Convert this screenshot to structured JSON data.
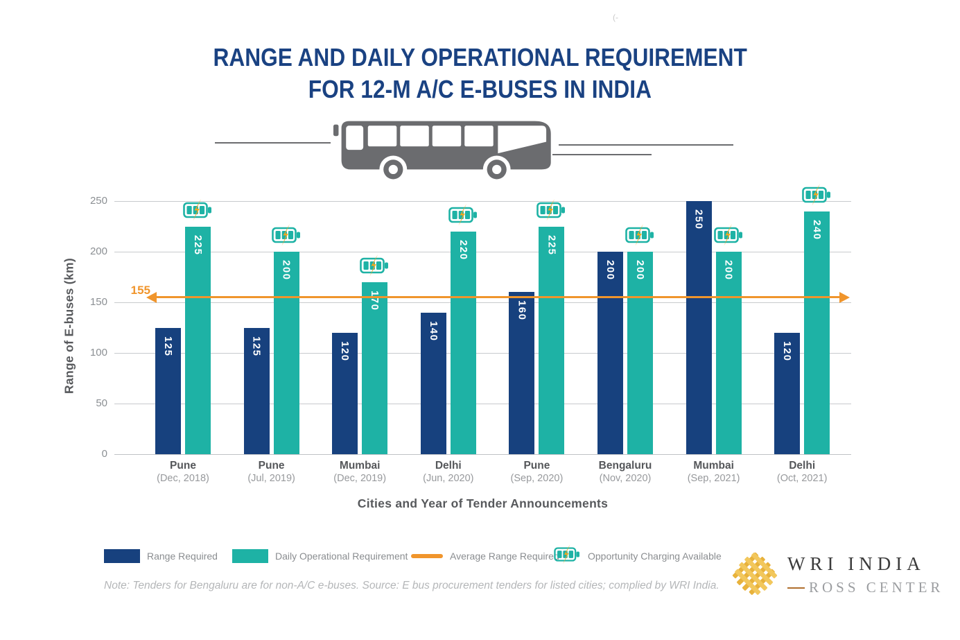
{
  "artifact": "(-",
  "title": {
    "line1": "RANGE AND DAILY OPERATIONAL REQUIREMENT",
    "line2": "FOR 12-M A/C E-BUSES IN INDIA"
  },
  "chart_data": {
    "type": "bar",
    "title": "Range and Daily Operational Requirement for 12-m A/C E-buses in India",
    "xlabel": "Cities and Year of Tender Announcements",
    "ylabel": "Range of E-buses (km)",
    "ylim": [
      0,
      250
    ],
    "yticks": [
      0,
      50,
      100,
      150,
      200,
      250
    ],
    "grid": "horizontal",
    "legend_position": "bottom",
    "categories": [
      {
        "city": "Pune",
        "date": "(Dec, 2018)"
      },
      {
        "city": "Pune",
        "date": "(Jul, 2019)"
      },
      {
        "city": "Mumbai",
        "date": "(Dec, 2019)"
      },
      {
        "city": "Delhi",
        "date": "(Jun, 2020)"
      },
      {
        "city": "Pune",
        "date": "(Sep, 2020)"
      },
      {
        "city": "Bengaluru",
        "date": "(Nov, 2020)"
      },
      {
        "city": "Mumbai",
        "date": "(Sep, 2021)"
      },
      {
        "city": "Delhi",
        "date": "(Oct, 2021)"
      }
    ],
    "series": [
      {
        "name": "Range Required",
        "color": "#17417E",
        "values": [
          125,
          125,
          120,
          140,
          160,
          200,
          250,
          120
        ]
      },
      {
        "name": "Daily Operational Requirement",
        "color": "#1EB2A5",
        "values": [
          225,
          200,
          170,
          220,
          225,
          200,
          200,
          240
        ]
      }
    ],
    "average_line": {
      "name": "Average Range Required",
      "value": 155,
      "label": "155",
      "color": "#F0952C"
    },
    "opportunity_charging_available": [
      true,
      true,
      true,
      true,
      true,
      true,
      true,
      true
    ]
  },
  "legend": {
    "items": [
      {
        "label": "Range Required",
        "swatch": "blue-rect",
        "color": "#17417E"
      },
      {
        "label": "Daily Operational Requirement",
        "swatch": "teal-rect",
        "color": "#1EB2A5"
      },
      {
        "label": "Average Range Required",
        "swatch": "orange-line",
        "color": "#F0952C"
      },
      {
        "label": "Opportunity Charging Available",
        "swatch": "battery-icon",
        "color": "#1EB2A5"
      }
    ]
  },
  "note": "Note: Tenders for Bengaluru are for non-A/C e-buses. Source: E bus procurement tenders for listed cities; complied by WRI India.",
  "logo": {
    "org": "WRI INDIA",
    "sub": "ROSS CENTER"
  }
}
